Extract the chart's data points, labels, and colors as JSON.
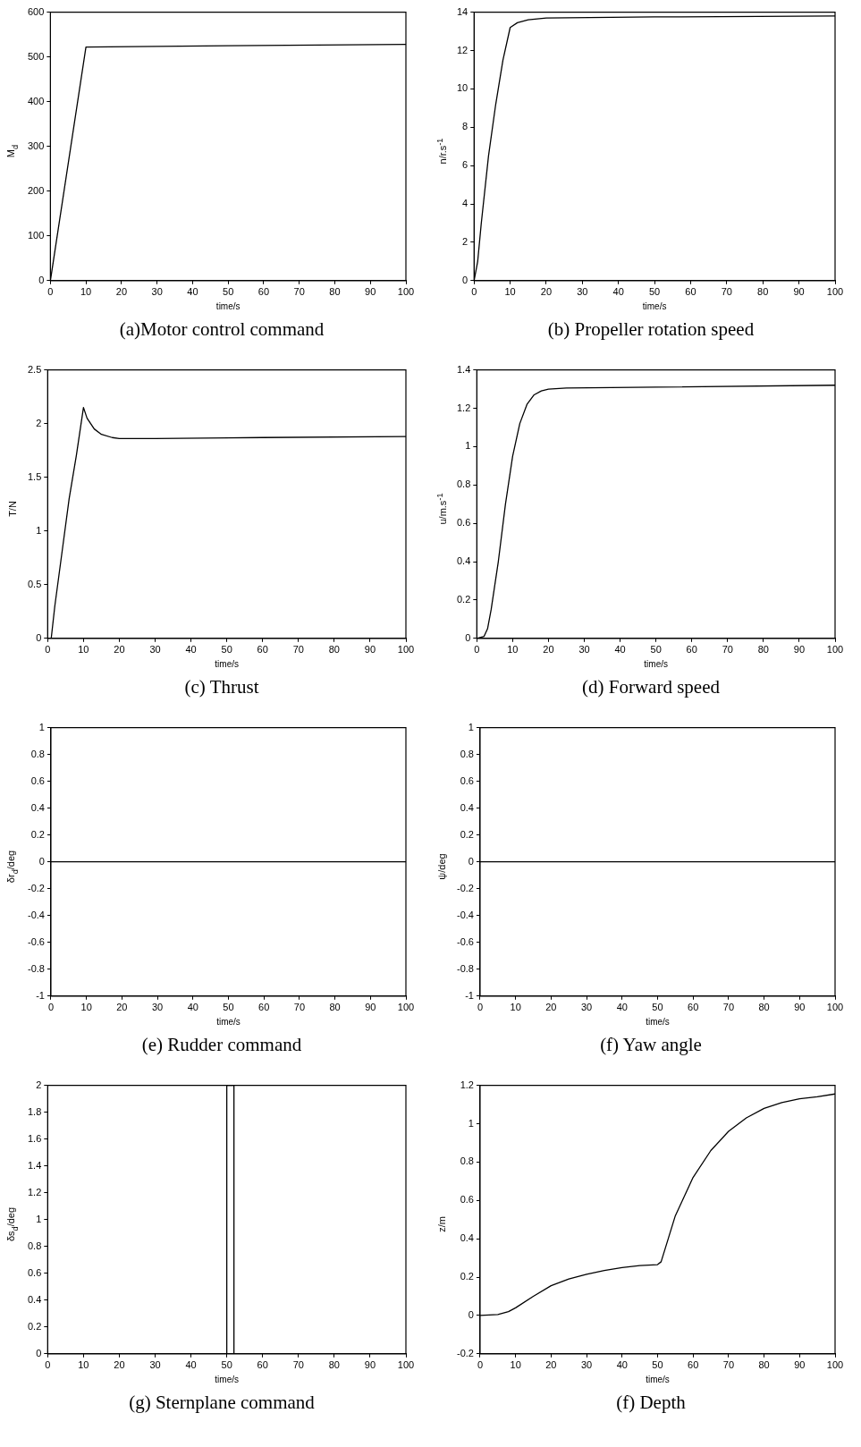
{
  "chart_data": [
    {
      "type": "line",
      "title": "(a)Motor control command",
      "xlabel": "time/s",
      "ylabel": "M$_{d}$",
      "xlim": [
        0,
        100
      ],
      "xticks": [
        0,
        10,
        20,
        30,
        40,
        50,
        60,
        70,
        80,
        90,
        100
      ],
      "ylim": [
        0,
        600
      ],
      "yticks": [
        0,
        100,
        200,
        300,
        400,
        500,
        600
      ],
      "grid": false,
      "series": [
        {
          "color": "#000000",
          "x": [
            0,
            10,
            50,
            100
          ],
          "values": [
            0,
            522,
            525,
            528
          ]
        }
      ]
    },
    {
      "type": "line",
      "title": "(b) Propeller rotation speed",
      "xlabel": "time/s",
      "ylabel": "n/r.s$^{-1}$",
      "xlim": [
        0,
        100
      ],
      "xticks": [
        0,
        10,
        20,
        30,
        40,
        50,
        60,
        70,
        80,
        90,
        100
      ],
      "ylim": [
        0,
        14
      ],
      "yticks": [
        0,
        2,
        4,
        6,
        8,
        10,
        12,
        14
      ],
      "grid": false,
      "series": [
        {
          "color": "#000000",
          "x": [
            0,
            1,
            2,
            4,
            6,
            8,
            10,
            12,
            15,
            20,
            50,
            100
          ],
          "values": [
            0,
            1,
            3,
            6.5,
            9.2,
            11.5,
            13.2,
            13.45,
            13.6,
            13.7,
            13.75,
            13.8
          ]
        }
      ]
    },
    {
      "type": "line",
      "title": "(c) Thrust",
      "xlabel": "time/s",
      "ylabel": "T/N",
      "xlim": [
        0,
        100
      ],
      "xticks": [
        0,
        10,
        20,
        30,
        40,
        50,
        60,
        70,
        80,
        90,
        100
      ],
      "ylim": [
        0,
        2.5
      ],
      "yticks": [
        0,
        0.5,
        1,
        1.5,
        2,
        2.5
      ],
      "grid": false,
      "series": [
        {
          "color": "#000000",
          "x": [
            0,
            1,
            2,
            4,
            6,
            8,
            10,
            11,
            13,
            15,
            18,
            20,
            30,
            60,
            100
          ],
          "values": [
            0,
            0,
            0.3,
            0.8,
            1.3,
            1.7,
            2.15,
            2.05,
            1.95,
            1.9,
            1.87,
            1.86,
            1.86,
            1.87,
            1.88
          ]
        }
      ]
    },
    {
      "type": "line",
      "title": "(d) Forward speed",
      "xlabel": "time/s",
      "ylabel": "u/m.s$^{-1}$",
      "xlim": [
        0,
        100
      ],
      "xticks": [
        0,
        10,
        20,
        30,
        40,
        50,
        60,
        70,
        80,
        90,
        100
      ],
      "ylim": [
        0,
        1.4
      ],
      "yticks": [
        0,
        0.2,
        0.4,
        0.6,
        0.8,
        1,
        1.2,
        1.4
      ],
      "grid": false,
      "series": [
        {
          "color": "#000000",
          "x": [
            0,
            2,
            3,
            4,
            6,
            8,
            10,
            12,
            14,
            16,
            18,
            20,
            25,
            50,
            100
          ],
          "values": [
            0,
            0.01,
            0.05,
            0.15,
            0.4,
            0.7,
            0.95,
            1.12,
            1.22,
            1.27,
            1.29,
            1.3,
            1.305,
            1.31,
            1.32
          ]
        }
      ]
    },
    {
      "type": "line",
      "title": "(e) Rudder command",
      "xlabel": "time/s",
      "ylabel": "δr$_{d}$/deg",
      "xlim": [
        0,
        100
      ],
      "xticks": [
        0,
        10,
        20,
        30,
        40,
        50,
        60,
        70,
        80,
        90,
        100
      ],
      "ylim": [
        -1,
        1
      ],
      "yticks": [
        -1,
        -0.8,
        -0.6,
        -0.4,
        -0.2,
        0,
        0.2,
        0.4,
        0.6,
        0.8,
        1
      ],
      "grid": false,
      "series": [
        {
          "color": "#000000",
          "x": [
            0,
            100
          ],
          "values": [
            0,
            0
          ]
        }
      ]
    },
    {
      "type": "line",
      "title": "(f) Yaw angle",
      "xlabel": "time/s",
      "ylabel": "ψ/deg",
      "xlim": [
        0,
        100
      ],
      "xticks": [
        0,
        10,
        20,
        30,
        40,
        50,
        60,
        70,
        80,
        90,
        100
      ],
      "ylim": [
        -1,
        1
      ],
      "yticks": [
        -1,
        -0.8,
        -0.6,
        -0.4,
        -0.2,
        0,
        0.2,
        0.4,
        0.6,
        0.8,
        1
      ],
      "grid": false,
      "series": [
        {
          "color": "#000000",
          "x": [
            0,
            100
          ],
          "values": [
            0,
            0
          ]
        }
      ]
    },
    {
      "type": "line",
      "title": "(g) Sternplane command",
      "xlabel": "time/s",
      "ylabel": "δs$_{d}$/deg",
      "xlim": [
        0,
        100
      ],
      "xticks": [
        0,
        10,
        20,
        30,
        40,
        50,
        60,
        70,
        80,
        90,
        100
      ],
      "ylim": [
        0,
        2
      ],
      "yticks": [
        0,
        0.2,
        0.4,
        0.6,
        0.8,
        1,
        1.2,
        1.4,
        1.6,
        1.8,
        2
      ],
      "grid": false,
      "series": [
        {
          "color": "#000000",
          "x": [
            0,
            50,
            50,
            52,
            52,
            100
          ],
          "values": [
            0,
            0,
            2,
            2,
            0,
            0
          ]
        }
      ]
    },
    {
      "type": "line",
      "title": "(f) Depth",
      "xlabel": "time/s",
      "ylabel": "z/m",
      "xlim": [
        0,
        100
      ],
      "xticks": [
        0,
        10,
        20,
        30,
        40,
        50,
        60,
        70,
        80,
        90,
        100
      ],
      "ylim": [
        -0.2,
        1.2
      ],
      "yticks": [
        -0.2,
        0,
        0.2,
        0.4,
        0.6,
        0.8,
        1,
        1.2
      ],
      "grid": false,
      "series": [
        {
          "color": "#000000",
          "x": [
            0,
            5,
            8,
            10,
            15,
            20,
            25,
            30,
            35,
            40,
            45,
            50,
            51,
            53,
            55,
            58,
            60,
            65,
            70,
            75,
            80,
            85,
            90,
            95,
            100
          ],
          "values": [
            0,
            0.005,
            0.02,
            0.04,
            0.1,
            0.155,
            0.19,
            0.215,
            0.235,
            0.25,
            0.26,
            0.265,
            0.28,
            0.4,
            0.52,
            0.64,
            0.72,
            0.86,
            0.96,
            1.03,
            1.08,
            1.11,
            1.13,
            1.14,
            1.155
          ]
        }
      ]
    }
  ]
}
